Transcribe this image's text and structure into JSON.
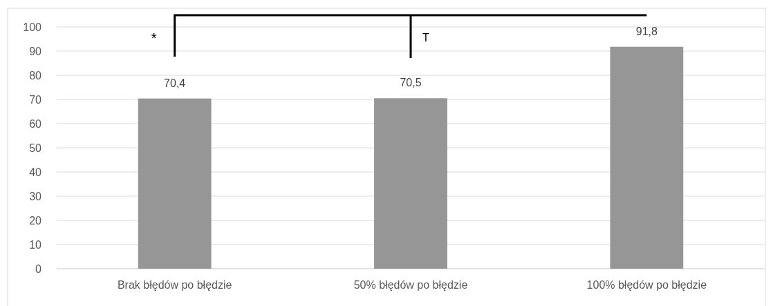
{
  "chart_data": {
    "type": "bar",
    "categories": [
      "Brak błędów po błędzie",
      "50% błędów po błędzie",
      "100% błędów po błędzie"
    ],
    "values": [
      70.4,
      70.5,
      91.8
    ],
    "value_labels": [
      "70,4",
      "70,5",
      "91,8"
    ],
    "color": "#969696",
    "ylim": [
      0,
      100
    ],
    "yticks": [
      0,
      10,
      20,
      30,
      40,
      50,
      60,
      70,
      80,
      90,
      100
    ],
    "grid": "y",
    "annotations": [
      "*",
      "T"
    ]
  }
}
